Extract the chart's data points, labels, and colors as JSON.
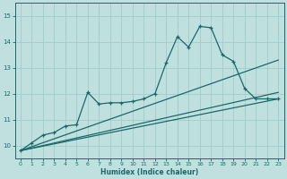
{
  "title": "",
  "xlabel": "Humidex (Indice chaleur)",
  "background_color": "#c0e0e0",
  "grid_color": "#a0cccc",
  "line_color": "#1a6868",
  "xlim": [
    -0.5,
    23.5
  ],
  "ylim": [
    9.5,
    15.5
  ],
  "yticks": [
    10,
    11,
    12,
    13,
    14,
    15
  ],
  "xticks": [
    0,
    1,
    2,
    3,
    4,
    5,
    6,
    7,
    8,
    9,
    10,
    11,
    12,
    13,
    14,
    15,
    16,
    17,
    18,
    19,
    20,
    21,
    22,
    23
  ],
  "series1_x": [
    0,
    1,
    2,
    3,
    4,
    5,
    6,
    7,
    8,
    9,
    10,
    11,
    12,
    13,
    14,
    15,
    16,
    17,
    18,
    19,
    20,
    21,
    22,
    23
  ],
  "series1_y": [
    9.8,
    10.1,
    10.4,
    10.5,
    10.75,
    10.8,
    12.05,
    11.6,
    11.65,
    11.65,
    11.7,
    11.8,
    12.0,
    13.2,
    14.2,
    13.8,
    14.6,
    14.55,
    13.5,
    13.25,
    12.2,
    11.8,
    11.8,
    11.8
  ],
  "line2_x": [
    0,
    23
  ],
  "line2_y": [
    9.8,
    11.8
  ],
  "line3_x": [
    0,
    23
  ],
  "line3_y": [
    9.8,
    12.05
  ],
  "line4_x": [
    0,
    23
  ],
  "line4_y": [
    9.8,
    13.3
  ]
}
